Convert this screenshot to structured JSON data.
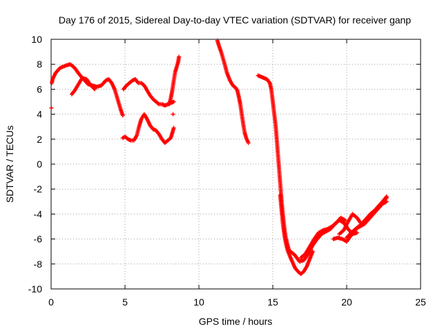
{
  "chart_data": {
    "type": "scatter",
    "title": "Day 176 of 2015, Sidereal Day-to-day VTEC variation (SDTVAR) for receiver ganp",
    "xlabel": "GPS time / hours",
    "ylabel": "SDTVAR / TECUs",
    "xlim": [
      0,
      25
    ],
    "ylim": [
      -10,
      10
    ],
    "x_ticks": [
      "0",
      "5",
      "10",
      "15",
      "20",
      "25"
    ],
    "y_ticks": [
      "-10",
      "-8",
      "-6",
      "-4",
      "-2",
      "0",
      "2",
      "4",
      "6",
      "8",
      "10"
    ],
    "grid": true,
    "marker": "plus",
    "marker_color": "#ff0000",
    "series": [
      {
        "x": [
          0.05,
          0.1,
          0.3,
          0.6,
          1.0,
          1.3,
          1.6,
          1.9,
          2.2,
          2.5,
          2.8,
          3.1,
          3.4,
          3.7,
          3.9,
          4.1,
          4.3,
          4.5,
          4.7,
          4.85
        ],
        "y": [
          6.5,
          6.8,
          7.3,
          7.7,
          7.9,
          8.0,
          7.7,
          7.2,
          6.8,
          6.4,
          6.3,
          6.2,
          6.3,
          6.7,
          6.8,
          6.5,
          6.0,
          5.2,
          4.4,
          3.9
        ]
      },
      {
        "x": [
          0.02
        ],
        "y": [
          4.5
        ]
      },
      {
        "x": [
          1.4,
          1.6,
          1.9,
          2.1,
          2.4,
          2.7,
          2.95
        ],
        "y": [
          5.6,
          5.9,
          6.5,
          6.9,
          6.8,
          6.3,
          6.0
        ]
      },
      {
        "x": [
          4.9,
          5.1,
          5.3,
          5.5,
          5.7,
          5.9,
          6.1,
          6.3,
          6.5,
          6.7,
          6.9,
          7.1,
          7.3,
          7.5,
          7.7,
          7.9,
          8.1,
          8.3
        ],
        "y": [
          6.0,
          6.3,
          6.5,
          6.7,
          6.8,
          6.5,
          6.5,
          6.3,
          5.9,
          5.5,
          5.2,
          5.0,
          4.8,
          4.8,
          4.7,
          4.8,
          4.9,
          5.0
        ]
      },
      {
        "x": [
          8.0,
          8.1,
          8.2,
          8.3,
          8.4,
          8.5,
          8.6,
          8.65
        ],
        "y": [
          4.8,
          5.3,
          5.9,
          6.7,
          7.4,
          7.8,
          8.2,
          8.6
        ]
      },
      {
        "x": [
          4.85,
          5.0,
          5.2,
          5.4,
          5.6,
          5.8,
          5.95,
          6.1,
          6.3,
          6.5,
          6.7,
          6.9,
          7.1,
          7.3,
          7.5,
          7.7,
          7.9,
          8.1,
          8.2,
          8.3
        ],
        "y": [
          2.1,
          2.2,
          2.0,
          1.9,
          1.9,
          2.3,
          3.0,
          3.6,
          4.0,
          3.6,
          3.1,
          2.8,
          2.7,
          2.4,
          2.0,
          1.7,
          1.9,
          2.1,
          2.5,
          2.9
        ]
      },
      {
        "x": [
          8.25
        ],
        "y": [
          4.0
        ]
      },
      {
        "x": [
          11.25,
          11.35,
          11.5,
          11.7,
          11.9,
          12.1,
          12.3,
          12.5,
          12.6,
          12.7,
          12.8,
          12.9,
          13.0,
          13.1,
          13.2,
          13.35
        ],
        "y": [
          9.9,
          9.5,
          9.0,
          8.2,
          7.3,
          6.7,
          6.3,
          6.1,
          5.9,
          5.4,
          4.8,
          4.0,
          3.2,
          2.5,
          2.1,
          1.7
        ]
      },
      {
        "x": [
          14.0,
          14.2,
          14.4,
          14.6,
          14.8,
          14.9,
          15.0,
          15.1,
          15.2,
          15.3,
          15.4,
          15.5,
          15.6,
          15.7,
          15.8,
          15.9,
          16.0,
          16.1,
          16.2
        ],
        "y": [
          7.1,
          7.0,
          6.9,
          6.8,
          6.5,
          6.0,
          5.0,
          4.0,
          3.0,
          1.5,
          0.0,
          -1.5,
          -3.0,
          -4.2,
          -5.3,
          -6.0,
          -6.5,
          -6.9,
          -7.0
        ]
      },
      {
        "x": [
          15.5,
          15.6,
          15.7,
          15.8,
          15.9,
          16.0,
          16.1,
          16.2,
          16.35,
          16.5,
          16.7,
          16.9,
          17.1,
          17.3,
          17.5,
          17.7
        ],
        "y": [
          -2.5,
          -3.8,
          -5.0,
          -5.8,
          -6.4,
          -6.9,
          -7.2,
          -7.5,
          -7.9,
          -8.3,
          -8.6,
          -8.8,
          -8.6,
          -8.2,
          -7.6,
          -7.0
        ]
      },
      {
        "x": [
          16.2,
          16.5,
          16.8,
          17.1,
          17.4,
          17.7,
          18.0,
          18.3,
          18.6,
          18.9,
          19.2,
          19.5,
          19.8,
          20.1,
          20.4,
          20.7
        ],
        "y": [
          -7.0,
          -7.3,
          -7.8,
          -7.7,
          -7.2,
          -6.5,
          -6.0,
          -5.6,
          -5.4,
          -5.2,
          -4.8,
          -4.5,
          -4.7,
          -5.2,
          -5.6,
          -5.5
        ]
      },
      {
        "x": [
          16.9,
          17.2,
          17.5,
          17.8,
          18.1,
          18.4,
          18.7,
          19.0,
          19.3,
          19.6,
          19.9
        ],
        "y": [
          -7.5,
          -7.2,
          -6.6,
          -6.0,
          -5.5,
          -5.3,
          -5.2,
          -5.0,
          -4.7,
          -4.3,
          -4.5
        ]
      },
      {
        "x": [
          19.1,
          19.4,
          19.7,
          20.0,
          20.3,
          20.6,
          20.9,
          21.2,
          21.5,
          21.8,
          22.1,
          22.4,
          22.7
        ],
        "y": [
          -6.0,
          -5.9,
          -6.0,
          -6.2,
          -5.7,
          -5.2,
          -5.0,
          -4.8,
          -4.4,
          -4.0,
          -3.6,
          -3.2,
          -3.0
        ]
      },
      {
        "x": [
          19.5,
          19.8,
          20.1,
          20.4,
          20.7,
          21.0,
          21.3,
          21.6,
          21.9,
          22.2,
          22.5,
          22.7
        ],
        "y": [
          -5.6,
          -5.3,
          -4.6,
          -4.0,
          -4.3,
          -4.8,
          -4.4,
          -4.0,
          -3.7,
          -3.3,
          -2.9,
          -2.6
        ]
      },
      {
        "x": [
          20.0,
          20.3,
          20.6,
          20.9,
          21.2,
          21.5,
          21.8,
          22.1,
          22.4,
          22.7
        ],
        "y": [
          -5.9,
          -5.5,
          -5.2,
          -4.9,
          -4.7,
          -4.3,
          -3.9,
          -3.5,
          -3.1,
          -2.7
        ]
      }
    ]
  }
}
